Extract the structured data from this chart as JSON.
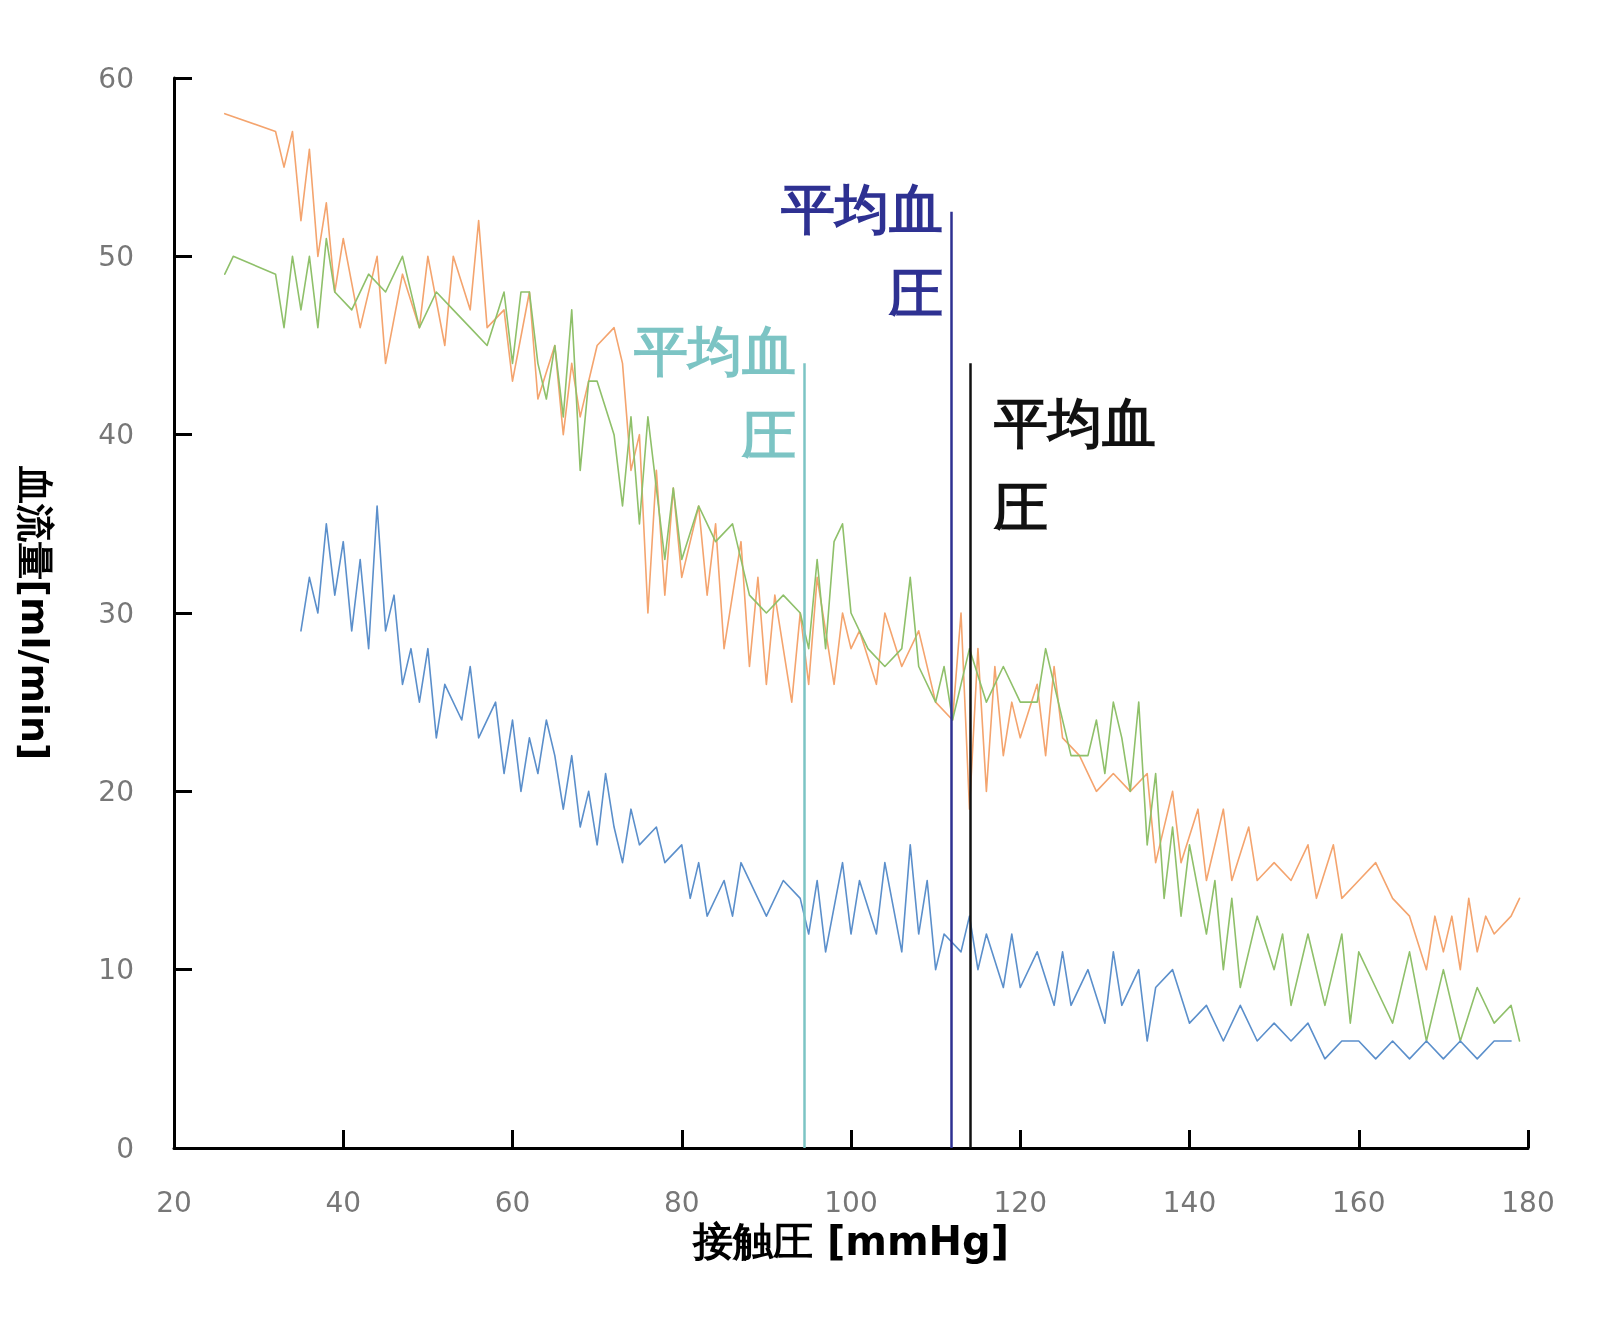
{
  "chart_data": {
    "type": "line",
    "xlabel": "接触圧 [mmHg]",
    "ylabel": "血流量[ml/min]",
    "xlim": [
      20,
      180
    ],
    "ylim": [
      0,
      60
    ],
    "xticks": [
      20,
      40,
      60,
      80,
      100,
      120,
      140,
      160,
      180
    ],
    "yticks": [
      0,
      10,
      20,
      30,
      40,
      50,
      60
    ],
    "grid": false,
    "marker": "none",
    "line_style": "solid",
    "series": [
      {
        "color": "#f4a46e",
        "x": [
          26,
          32,
          33,
          34,
          35,
          36,
          37,
          38,
          39,
          40,
          42,
          44,
          45,
          47,
          49,
          50,
          52,
          53,
          55,
          56,
          57,
          59,
          60,
          62,
          63,
          65,
          66,
          67,
          68,
          70,
          72,
          73,
          74,
          75,
          76,
          77,
          78,
          79,
          80,
          82,
          83,
          84,
          85,
          87,
          88,
          89,
          90,
          91,
          93,
          94,
          95,
          96,
          97,
          98,
          99,
          100,
          101,
          103,
          104,
          106,
          108,
          110,
          112,
          113,
          114,
          115,
          116,
          117,
          118,
          119,
          120,
          122,
          123,
          124,
          125,
          127,
          129,
          131,
          133,
          135,
          136,
          138,
          139,
          141,
          142,
          144,
          145,
          147,
          148,
          150,
          152,
          154,
          155,
          157,
          158,
          160,
          162,
          164,
          166,
          168,
          169,
          170,
          171,
          172,
          173,
          174,
          175,
          176,
          178,
          179
        ],
        "values": [
          58,
          57,
          55,
          57,
          52,
          56,
          50,
          53,
          48,
          51,
          46,
          50,
          44,
          49,
          46,
          50,
          45,
          50,
          47,
          52,
          46,
          47,
          43,
          48,
          42,
          45,
          40,
          44,
          41,
          45,
          46,
          44,
          38,
          40,
          30,
          38,
          31,
          37,
          32,
          36,
          31,
          35,
          28,
          34,
          27,
          32,
          26,
          31,
          25,
          30,
          26,
          32,
          29,
          26,
          30,
          28,
          29,
          26,
          30,
          27,
          29,
          25,
          24,
          30,
          19,
          28,
          20,
          27,
          22,
          25,
          23,
          26,
          22,
          27,
          23,
          22,
          20,
          21,
          20,
          21,
          16,
          20,
          16,
          19,
          15,
          19,
          15,
          18,
          15,
          16,
          15,
          17,
          14,
          17,
          14,
          15,
          16,
          14,
          13,
          10,
          13,
          11,
          13,
          10,
          14,
          11,
          13,
          12,
          13,
          14
        ]
      },
      {
        "color": "#8fc06a",
        "x": [
          26,
          27,
          32,
          33,
          34,
          35,
          36,
          37,
          38,
          39,
          41,
          43,
          45,
          47,
          49,
          51,
          53,
          55,
          57,
          59,
          60,
          61,
          62,
          63,
          64,
          65,
          66,
          67,
          68,
          69,
          70,
          72,
          73,
          74,
          75,
          76,
          77,
          78,
          79,
          80,
          82,
          84,
          86,
          88,
          90,
          92,
          94,
          95,
          96,
          97,
          98,
          99,
          100,
          102,
          104,
          106,
          107,
          108,
          110,
          111,
          112,
          113,
          114,
          116,
          118,
          120,
          122,
          123,
          124,
          126,
          128,
          129,
          130,
          131,
          132,
          133,
          134,
          135,
          136,
          137,
          138,
          139,
          140,
          142,
          143,
          144,
          145,
          146,
          148,
          150,
          151,
          152,
          154,
          156,
          158,
          159,
          160,
          162,
          164,
          166,
          168,
          170,
          172,
          174,
          176,
          178,
          179
        ],
        "values": [
          49,
          50,
          49,
          46,
          50,
          47,
          50,
          46,
          51,
          48,
          47,
          49,
          48,
          50,
          46,
          48,
          47,
          46,
          45,
          48,
          44,
          48,
          48,
          44,
          42,
          45,
          41,
          47,
          38,
          43,
          43,
          40,
          36,
          41,
          35,
          41,
          37,
          33,
          37,
          33,
          36,
          34,
          35,
          31,
          30,
          31,
          30,
          28,
          33,
          28,
          34,
          35,
          30,
          28,
          27,
          28,
          32,
          27,
          25,
          27,
          24,
          26,
          28,
          25,
          27,
          25,
          25,
          28,
          26,
          22,
          22,
          24,
          21,
          25,
          23,
          20,
          25,
          17,
          21,
          14,
          18,
          13,
          17,
          12,
          15,
          10,
          14,
          9,
          13,
          10,
          12,
          8,
          12,
          8,
          12,
          7,
          11,
          9,
          7,
          11,
          6,
          10,
          6,
          9,
          7,
          8,
          6
        ]
      },
      {
        "color": "#5b8fcb",
        "x": [
          35,
          36,
          37,
          38,
          39,
          40,
          41,
          42,
          43,
          44,
          45,
          46,
          47,
          48,
          49,
          50,
          51,
          52,
          54,
          55,
          56,
          58,
          59,
          60,
          61,
          62,
          63,
          64,
          65,
          66,
          67,
          68,
          69,
          70,
          71,
          72,
          73,
          74,
          75,
          77,
          78,
          80,
          81,
          82,
          83,
          85,
          86,
          87,
          89,
          90,
          92,
          94,
          95,
          96,
          97,
          99,
          100,
          101,
          103,
          104,
          106,
          107,
          108,
          109,
          110,
          111,
          113,
          114,
          115,
          116,
          118,
          119,
          120,
          122,
          124,
          125,
          126,
          128,
          130,
          131,
          132,
          134,
          135,
          136,
          138,
          140,
          142,
          144,
          146,
          148,
          150,
          152,
          154,
          156,
          158,
          160,
          162,
          164,
          166,
          168,
          170,
          172,
          174,
          176,
          178
        ],
        "values": [
          29,
          32,
          30,
          35,
          31,
          34,
          29,
          33,
          28,
          36,
          29,
          31,
          26,
          28,
          25,
          28,
          23,
          26,
          24,
          27,
          23,
          25,
          21,
          24,
          20,
          23,
          21,
          24,
          22,
          19,
          22,
          18,
          20,
          17,
          21,
          18,
          16,
          19,
          17,
          18,
          16,
          17,
          14,
          16,
          13,
          15,
          13,
          16,
          14,
          13,
          15,
          14,
          12,
          15,
          11,
          16,
          12,
          15,
          12,
          16,
          11,
          17,
          12,
          15,
          10,
          12,
          11,
          13,
          10,
          12,
          9,
          12,
          9,
          11,
          8,
          11,
          8,
          10,
          7,
          11,
          8,
          10,
          6,
          9,
          10,
          7,
          8,
          6,
          8,
          6,
          7,
          6,
          7,
          5,
          6,
          6,
          5,
          6,
          5,
          6,
          5,
          6,
          5,
          6,
          6
        ]
      }
    ],
    "ref_lines": [
      {
        "axis": "x",
        "value": 94.5,
        "label": "平均血圧",
        "color": "#7cc4c4"
      },
      {
        "axis": "x",
        "value": 111.8,
        "label": "平均血圧",
        "color": "#2e3192"
      },
      {
        "axis": "x",
        "value": 114.1,
        "label": "平均血圧",
        "color": "#111111"
      }
    ]
  }
}
